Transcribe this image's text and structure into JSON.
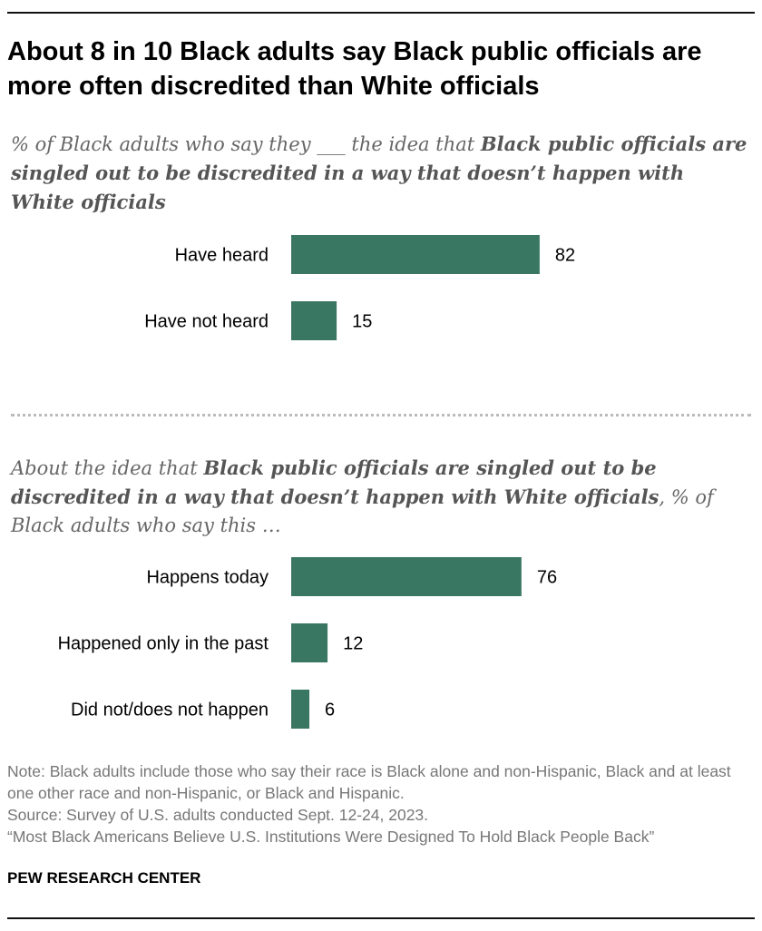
{
  "title": "About 8 in 10 Black adults say Black public officials are more often discredited than White officials",
  "panel1": {
    "subtitle_pre": "% of Black adults who say they ___ the idea that ",
    "subtitle_bold": "Black public officials are singled out to be discredited in a way that doesn’t happen with White officials",
    "subtitle_post": ""
  },
  "panel2": {
    "subtitle_pre": "About the idea that ",
    "subtitle_bold": "Black public officials are singled out to be discredited in a way that doesn’t happen with White officials",
    "subtitle_post": ", % of Black adults who say this …"
  },
  "chart_data": [
    {
      "type": "bar",
      "orientation": "horizontal",
      "categories": [
        "Have heard",
        "Have not heard"
      ],
      "values": [
        82,
        15
      ],
      "xlim": [
        0,
        100
      ]
    },
    {
      "type": "bar",
      "orientation": "horizontal",
      "categories": [
        "Happens today",
        "Happened only in the past",
        "Did not/does not happen"
      ],
      "values": [
        76,
        12,
        6
      ],
      "xlim": [
        0,
        100
      ]
    }
  ],
  "colors": {
    "bar": "#3a7762",
    "text": "#000000",
    "note": "#777777"
  },
  "notes": [
    "Note: Black adults include those who say their race is Black alone and non-Hispanic, Black and at least one other race and non-Hispanic, or Black and Hispanic.",
    "Source: Survey of U.S. adults conducted Sept. 12-24, 2023.",
    "“Most Black Americans Believe U.S. Institutions Were Designed To Hold Black People Back”"
  ],
  "brand": "PEW RESEARCH CENTER"
}
